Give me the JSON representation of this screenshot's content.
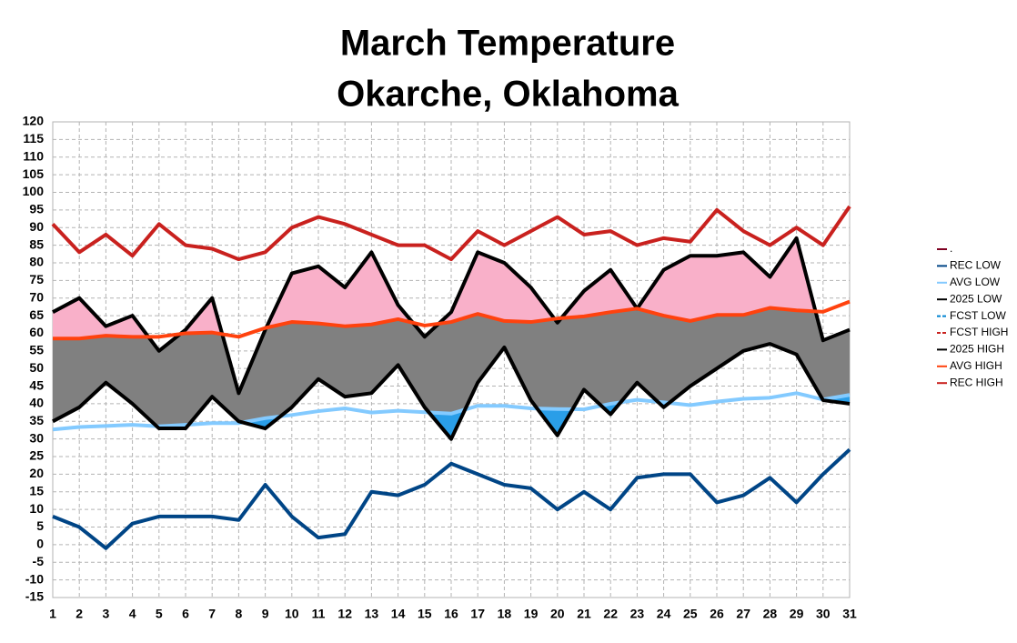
{
  "chart_data": {
    "type": "line",
    "title": "March Temperature",
    "subtitle": "Okarche, Oklahoma",
    "categories": [
      1,
      2,
      3,
      4,
      5,
      6,
      7,
      8,
      9,
      10,
      11,
      12,
      13,
      14,
      15,
      16,
      17,
      18,
      19,
      20,
      21,
      22,
      23,
      24,
      25,
      26,
      27,
      28,
      29,
      30,
      31
    ],
    "ylim": [
      -15,
      120
    ],
    "yticks": [
      -15,
      -10,
      -5,
      0,
      5,
      10,
      15,
      20,
      25,
      30,
      35,
      40,
      45,
      50,
      55,
      60,
      65,
      70,
      75,
      80,
      85,
      90,
      95,
      100,
      105,
      110,
      115,
      120
    ],
    "grid": true,
    "legend": "right",
    "series": [
      {
        "name": ".",
        "color": "#7e0021",
        "values": [
          null,
          null,
          null,
          null,
          null,
          null,
          null,
          null,
          null,
          null,
          null,
          null,
          null,
          null,
          null,
          null,
          null,
          null,
          null,
          null,
          null,
          null,
          null,
          null,
          null,
          null,
          null,
          null,
          null,
          null,
          null
        ]
      },
      {
        "name": "REC LOW",
        "color": "#004586",
        "values": [
          8,
          5,
          -1,
          6,
          8,
          8,
          8,
          7,
          17,
          8,
          2,
          3,
          15,
          14,
          17,
          23,
          20,
          17,
          16,
          10,
          15,
          10,
          19,
          20,
          20,
          12,
          14,
          19,
          12,
          20,
          27
        ]
      },
      {
        "name": "AVG LOW",
        "color": "#83caff",
        "values": [
          32.7,
          33.4,
          33.7,
          34,
          33.6,
          34,
          34.5,
          34.5,
          35.9,
          36.8,
          37.9,
          38.7,
          37.5,
          38,
          37.6,
          37.2,
          39.4,
          39.4,
          38.7,
          38.5,
          38.4,
          40,
          41.1,
          40.4,
          39.6,
          40.6,
          41.4,
          41.7,
          43,
          41.2,
          42.5
        ]
      },
      {
        "name": "2025 LOW",
        "color": "#000000",
        "values": [
          35,
          39,
          46,
          40,
          33,
          33,
          42,
          35,
          33,
          39,
          47,
          42,
          43,
          51,
          39,
          30,
          46,
          56,
          41,
          31,
          44,
          37,
          46,
          39,
          45,
          50,
          55,
          57,
          54,
          41,
          40
        ]
      },
      {
        "name": "FCST LOW",
        "color": "#0084d1",
        "dashed": true,
        "values": [
          null,
          null,
          null,
          null,
          null,
          null,
          null,
          null,
          null,
          null,
          null,
          null,
          null,
          null,
          null,
          null,
          null,
          null,
          null,
          null,
          null,
          null,
          null,
          null,
          null,
          null,
          null,
          null,
          null,
          null,
          null
        ]
      },
      {
        "name": "FCST HIGH",
        "color": "#c9211e",
        "dashed": true,
        "values": [
          null,
          null,
          null,
          null,
          null,
          null,
          null,
          null,
          null,
          null,
          null,
          null,
          null,
          null,
          null,
          null,
          null,
          null,
          null,
          null,
          null,
          null,
          null,
          null,
          null,
          null,
          null,
          null,
          null,
          null,
          null
        ]
      },
      {
        "name": "2025 HIGH",
        "color": "#000000",
        "values": [
          66,
          70,
          62,
          65,
          55,
          61,
          70,
          43,
          61,
          77,
          79,
          73,
          83,
          68,
          59,
          66,
          83,
          80,
          73,
          63,
          72,
          78,
          67,
          78,
          82,
          82,
          83,
          76,
          87,
          58,
          61
        ]
      },
      {
        "name": "AVG HIGH",
        "color": "#ff420e",
        "values": [
          58.5,
          58.5,
          59.3,
          59,
          59,
          60,
          60.2,
          59,
          61.5,
          63.2,
          62.8,
          62,
          62.5,
          64,
          62.2,
          63.2,
          65.5,
          63.5,
          63.2,
          64.2,
          64.8,
          66,
          67,
          65,
          63.5,
          65.2,
          65.2,
          67.2,
          66.5,
          66.1,
          69
        ]
      },
      {
        "name": "REC HIGH",
        "color": "#c9211e",
        "values": [
          91,
          83,
          88,
          82,
          91,
          85,
          84,
          81,
          83,
          90,
          93,
          91,
          88,
          85,
          85,
          81,
          89,
          85,
          89,
          93,
          88,
          89,
          85,
          87,
          86,
          95,
          89,
          85,
          90,
          85,
          96
        ]
      }
    ]
  }
}
